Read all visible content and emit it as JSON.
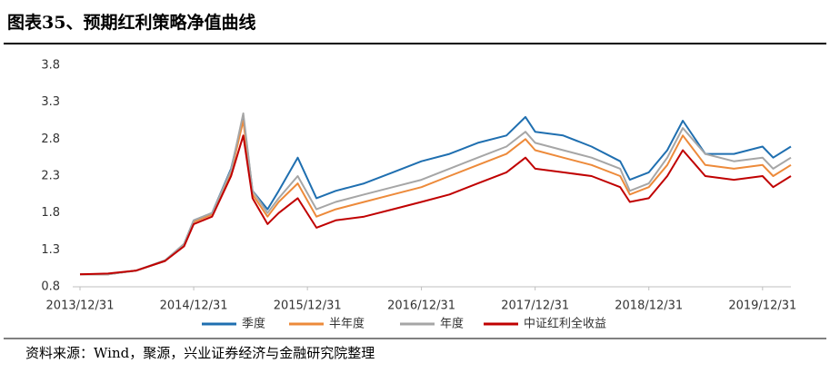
{
  "chart_data": {
    "type": "line",
    "title": "图表35、预期红利策略净值曲线",
    "source": "资料来源：Wind，聚源，兴业证券经济与金融研究院整理",
    "x": [
      "2013/12/31",
      "2014/03/31",
      "2014/06/30",
      "2014/09/30",
      "2014/11/30",
      "2014/12/31",
      "2015/02/28",
      "2015/04/30",
      "2015/06/08",
      "2015/07/08",
      "2015/08/25",
      "2015/09/30",
      "2015/11/30",
      "2016/01/29",
      "2016/03/31",
      "2016/06/30",
      "2016/09/30",
      "2016/12/31",
      "2017/03/31",
      "2017/06/30",
      "2017/09/30",
      "2017/11/30",
      "2017/12/31",
      "2018/03/31",
      "2018/06/30",
      "2018/09/30",
      "2018/10/31",
      "2018/12/31",
      "2019/02/28",
      "2019/04/19",
      "2019/06/30",
      "2019/09/30",
      "2019/12/31",
      "2020/02/03",
      "2020/03/31"
    ],
    "series": [
      {
        "name": "季度",
        "color": "#1f6fb0",
        "values": [
          0.97,
          0.97,
          1.02,
          1.15,
          1.38,
          1.7,
          1.8,
          2.4,
          3.1,
          2.1,
          1.85,
          2.1,
          2.55,
          2.0,
          2.1,
          2.2,
          2.35,
          2.5,
          2.6,
          2.75,
          2.85,
          3.1,
          2.9,
          2.85,
          2.7,
          2.5,
          2.25,
          2.35,
          2.65,
          3.05,
          2.6,
          2.6,
          2.7,
          2.55,
          2.7
        ]
      },
      {
        "name": "半年度",
        "color": "#ed8a3a",
        "values": [
          0.97,
          0.97,
          1.02,
          1.15,
          1.37,
          1.68,
          1.78,
          2.35,
          3.05,
          2.05,
          1.75,
          1.95,
          2.2,
          1.75,
          1.85,
          1.95,
          2.05,
          2.15,
          2.3,
          2.45,
          2.6,
          2.8,
          2.65,
          2.55,
          2.45,
          2.3,
          2.05,
          2.15,
          2.45,
          2.85,
          2.45,
          2.4,
          2.45,
          2.3,
          2.45
        ]
      },
      {
        "name": "年度",
        "color": "#a6a6a6",
        "values": [
          0.97,
          0.97,
          1.02,
          1.16,
          1.38,
          1.7,
          1.8,
          2.38,
          3.15,
          2.1,
          1.8,
          2.0,
          2.3,
          1.85,
          1.95,
          2.05,
          2.15,
          2.25,
          2.4,
          2.55,
          2.7,
          2.9,
          2.75,
          2.65,
          2.55,
          2.4,
          2.1,
          2.2,
          2.55,
          2.95,
          2.6,
          2.5,
          2.55,
          2.4,
          2.55
        ]
      },
      {
        "name": "中证红利全收益",
        "color": "#c00000",
        "values": [
          0.97,
          0.98,
          1.02,
          1.15,
          1.35,
          1.65,
          1.75,
          2.3,
          2.85,
          2.0,
          1.65,
          1.8,
          2.0,
          1.6,
          1.7,
          1.75,
          1.85,
          1.95,
          2.05,
          2.2,
          2.35,
          2.55,
          2.4,
          2.35,
          2.3,
          2.15,
          1.95,
          2.0,
          2.3,
          2.65,
          2.3,
          2.25,
          2.3,
          2.15,
          2.3
        ]
      }
    ],
    "xlim": [
      "2013/12/31",
      "2020/03/31"
    ],
    "xticks": [
      "2013/12/31",
      "2014/12/31",
      "2015/12/31",
      "2016/12/31",
      "2017/12/31",
      "2018/12/31",
      "2019/12/31"
    ],
    "ylim": [
      0.8,
      3.8
    ],
    "yticks": [
      0.8,
      1.3,
      1.8,
      2.3,
      2.8,
      3.3,
      3.8
    ]
  }
}
